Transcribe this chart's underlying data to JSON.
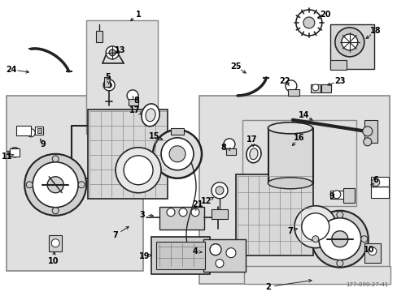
{
  "title": "177-090-27-41",
  "bg_color": "#ffffff",
  "box_fill": "#e0e0e0",
  "box_edge": "#888888",
  "part_color": "#222222",
  "line_color": "#222222",
  "text_color": "#000000",
  "font_size": 7.0,
  "dpi": 100,
  "figw": 4.89,
  "figh": 3.6
}
